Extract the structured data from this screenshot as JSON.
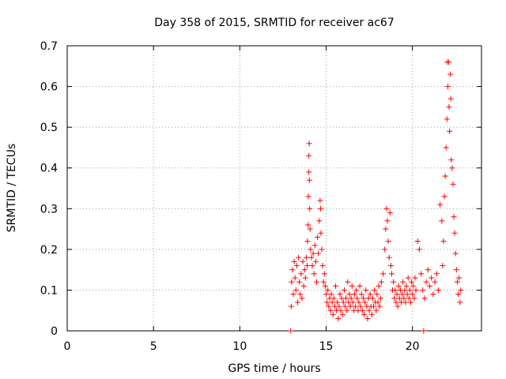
{
  "chart_data": {
    "type": "scatter",
    "title": "Day 358 of 2015, SRMTID for receiver ac67",
    "xlabel": "GPS time / hours",
    "ylabel": "SRMTID / TECUs",
    "xlim": [
      0,
      24
    ],
    "ylim": [
      0,
      0.7
    ],
    "xticks": [
      0,
      5,
      10,
      15,
      20
    ],
    "xtick_labels": [
      "0",
      "5",
      "10",
      "15",
      "20"
    ],
    "yticks": [
      0,
      0.1,
      0.2,
      0.3,
      0.4,
      0.5,
      0.6,
      0.7
    ],
    "ytick_labels": [
      "0",
      "0.1",
      "0.2",
      "0.3",
      "0.4",
      "0.5",
      "0.6",
      "0.7"
    ],
    "grid": true,
    "marker": "+",
    "series": [
      {
        "name": "SRMTID",
        "color": "#ff0000",
        "points": [
          [
            12.95,
            0.0
          ],
          [
            20.65,
            0.0
          ],
          [
            12.98,
            0.06
          ],
          [
            13.0,
            0.12
          ],
          [
            13.05,
            0.15
          ],
          [
            13.1,
            0.09
          ],
          [
            13.15,
            0.17
          ],
          [
            13.2,
            0.13
          ],
          [
            13.25,
            0.1
          ],
          [
            13.3,
            0.16
          ],
          [
            13.35,
            0.07
          ],
          [
            13.4,
            0.18
          ],
          [
            13.45,
            0.12
          ],
          [
            13.5,
            0.09
          ],
          [
            13.55,
            0.14
          ],
          [
            13.6,
            0.08
          ],
          [
            13.65,
            0.17
          ],
          [
            13.7,
            0.11
          ],
          [
            13.75,
            0.15
          ],
          [
            13.8,
            0.13
          ],
          [
            13.85,
            0.18
          ],
          [
            13.9,
            0.16
          ],
          [
            13.92,
            0.22
          ],
          [
            13.95,
            0.26
          ],
          [
            13.97,
            0.33
          ],
          [
            14.0,
            0.39
          ],
          [
            14.02,
            0.46
          ],
          [
            14.0,
            0.43
          ],
          [
            14.03,
            0.37
          ],
          [
            14.05,
            0.3
          ],
          [
            14.07,
            0.25
          ],
          [
            14.1,
            0.2
          ],
          [
            14.15,
            0.18
          ],
          [
            14.2,
            0.16
          ],
          [
            14.25,
            0.19
          ],
          [
            14.3,
            0.14
          ],
          [
            14.35,
            0.21
          ],
          [
            14.4,
            0.17
          ],
          [
            14.45,
            0.12
          ],
          [
            14.5,
            0.23
          ],
          [
            14.55,
            0.19
          ],
          [
            14.6,
            0.27
          ],
          [
            14.65,
            0.32
          ],
          [
            14.68,
            0.3
          ],
          [
            14.7,
            0.24
          ],
          [
            14.75,
            0.2
          ],
          [
            14.8,
            0.16
          ],
          [
            14.85,
            0.12
          ],
          [
            14.9,
            0.14
          ],
          [
            14.95,
            0.11
          ],
          [
            15.0,
            0.09
          ],
          [
            15.05,
            0.07
          ],
          [
            15.1,
            0.1
          ],
          [
            15.15,
            0.06
          ],
          [
            15.2,
            0.08
          ],
          [
            15.25,
            0.05
          ],
          [
            15.3,
            0.09
          ],
          [
            15.35,
            0.07
          ],
          [
            15.4,
            0.04
          ],
          [
            15.45,
            0.08
          ],
          [
            15.5,
            0.06
          ],
          [
            15.55,
            0.11
          ],
          [
            15.6,
            0.05
          ],
          [
            15.65,
            0.07
          ],
          [
            15.7,
            0.03
          ],
          [
            15.75,
            0.06
          ],
          [
            15.8,
            0.09
          ],
          [
            15.85,
            0.05
          ],
          [
            15.9,
            0.08
          ],
          [
            15.95,
            0.04
          ],
          [
            16.0,
            0.07
          ],
          [
            16.05,
            0.1
          ],
          [
            16.1,
            0.06
          ],
          [
            16.15,
            0.08
          ],
          [
            16.2,
            0.05
          ],
          [
            16.25,
            0.12
          ],
          [
            16.3,
            0.07
          ],
          [
            16.35,
            0.09
          ],
          [
            16.4,
            0.06
          ],
          [
            16.45,
            0.08
          ],
          [
            16.5,
            0.11
          ],
          [
            16.55,
            0.07
          ],
          [
            16.6,
            0.05
          ],
          [
            16.65,
            0.09
          ],
          [
            16.7,
            0.06
          ],
          [
            16.75,
            0.1
          ],
          [
            16.8,
            0.08
          ],
          [
            16.85,
            0.05
          ],
          [
            16.9,
            0.07
          ],
          [
            16.95,
            0.11
          ],
          [
            17.0,
            0.06
          ],
          [
            17.05,
            0.09
          ],
          [
            17.1,
            0.05
          ],
          [
            17.15,
            0.08
          ],
          [
            17.2,
            0.04
          ],
          [
            17.25,
            0.07
          ],
          [
            17.3,
            0.1
          ],
          [
            17.35,
            0.06
          ],
          [
            17.4,
            0.03
          ],
          [
            17.45,
            0.08
          ],
          [
            17.5,
            0.05
          ],
          [
            17.55,
            0.09
          ],
          [
            17.6,
            0.06
          ],
          [
            17.65,
            0.04
          ],
          [
            17.7,
            0.08
          ],
          [
            17.75,
            0.06
          ],
          [
            17.8,
            0.1
          ],
          [
            17.85,
            0.07
          ],
          [
            17.9,
            0.05
          ],
          [
            17.95,
            0.09
          ],
          [
            18.0,
            0.07
          ],
          [
            18.05,
            0.11
          ],
          [
            18.1,
            0.06
          ],
          [
            18.15,
            0.08
          ],
          [
            18.2,
            0.12
          ],
          [
            18.3,
            0.14
          ],
          [
            18.4,
            0.2
          ],
          [
            18.45,
            0.25
          ],
          [
            18.5,
            0.3
          ],
          [
            18.55,
            0.27
          ],
          [
            18.6,
            0.22
          ],
          [
            18.65,
            0.18
          ],
          [
            18.7,
            0.29
          ],
          [
            18.75,
            0.16
          ],
          [
            18.8,
            0.14
          ],
          [
            18.85,
            0.1
          ],
          [
            18.9,
            0.12
          ],
          [
            18.95,
            0.08
          ],
          [
            19.0,
            0.1
          ],
          [
            19.05,
            0.07
          ],
          [
            19.1,
            0.09
          ],
          [
            19.15,
            0.06
          ],
          [
            19.2,
            0.11
          ],
          [
            19.25,
            0.08
          ],
          [
            19.3,
            0.1
          ],
          [
            19.35,
            0.07
          ],
          [
            19.4,
            0.09
          ],
          [
            19.45,
            0.12
          ],
          [
            19.5,
            0.08
          ],
          [
            19.55,
            0.1
          ],
          [
            19.6,
            0.07
          ],
          [
            19.65,
            0.11
          ],
          [
            19.7,
            0.09
          ],
          [
            19.75,
            0.13
          ],
          [
            19.8,
            0.08
          ],
          [
            19.85,
            0.1
          ],
          [
            19.9,
            0.07
          ],
          [
            19.95,
            0.12
          ],
          [
            20.0,
            0.09
          ],
          [
            20.05,
            0.11
          ],
          [
            20.1,
            0.08
          ],
          [
            20.15,
            0.13
          ],
          [
            20.2,
            0.1
          ],
          [
            20.3,
            0.22
          ],
          [
            20.4,
            0.2
          ],
          [
            20.5,
            0.14
          ],
          [
            20.6,
            0.1
          ],
          [
            20.7,
            0.08
          ],
          [
            20.8,
            0.12
          ],
          [
            20.9,
            0.15
          ],
          [
            21.0,
            0.11
          ],
          [
            21.1,
            0.13
          ],
          [
            21.2,
            0.09
          ],
          [
            21.3,
            0.12
          ],
          [
            21.4,
            0.14
          ],
          [
            21.5,
            0.1
          ],
          [
            21.6,
            0.31
          ],
          [
            21.7,
            0.27
          ],
          [
            21.75,
            0.16
          ],
          [
            21.8,
            0.22
          ],
          [
            21.85,
            0.33
          ],
          [
            21.9,
            0.38
          ],
          [
            21.95,
            0.45
          ],
          [
            22.0,
            0.52
          ],
          [
            22.02,
            0.66
          ],
          [
            22.05,
            0.6
          ],
          [
            22.1,
            0.66
          ],
          [
            22.12,
            0.55
          ],
          [
            22.15,
            0.49
          ],
          [
            22.2,
            0.63
          ],
          [
            22.22,
            0.57
          ],
          [
            22.25,
            0.42
          ],
          [
            22.3,
            0.4
          ],
          [
            22.35,
            0.36
          ],
          [
            22.4,
            0.28
          ],
          [
            22.45,
            0.24
          ],
          [
            22.5,
            0.19
          ],
          [
            22.55,
            0.15
          ],
          [
            22.6,
            0.12
          ],
          [
            22.65,
            0.09
          ],
          [
            22.7,
            0.13
          ],
          [
            22.75,
            0.07
          ],
          [
            22.8,
            0.1
          ]
        ]
      }
    ]
  }
}
